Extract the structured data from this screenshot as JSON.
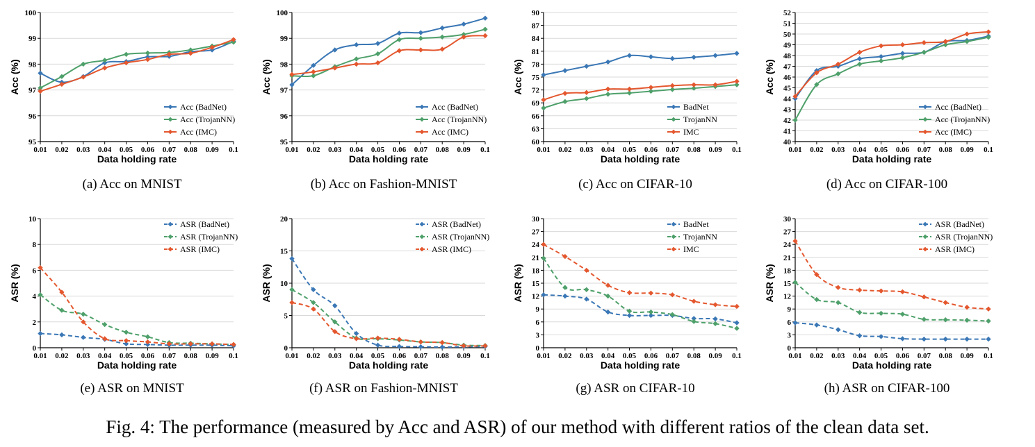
{
  "figure_caption": "Fig. 4: The performance (measured by Acc and ASR) of our method with different ratios of the clean data set.",
  "colors": {
    "badnet": "#3a77b5",
    "trojannn": "#4ea06a",
    "imc": "#e4572e"
  },
  "chart_data": [
    {
      "id": "a",
      "type": "line",
      "caption": "(a) Acc on MNIST",
      "xlabel": "Data holding rate",
      "ylabel": "Acc (%)",
      "x": [
        0.01,
        0.02,
        0.03,
        0.04,
        0.05,
        0.06,
        0.07,
        0.08,
        0.09,
        0.1
      ],
      "x_ticks": [
        "0.01",
        "0.02",
        "0.03",
        "0.04",
        "0.05",
        "0.06",
        "0.07",
        "0.08",
        "0.09",
        "0.1"
      ],
      "ylim": [
        95,
        100
      ],
      "y_ticks": [
        95,
        96,
        97,
        98,
        99,
        100
      ],
      "dashed": false,
      "legend_labels": [
        "Acc (BadNet)",
        "Acc (TrojanNN)",
        "Acc (IMC)"
      ],
      "series": [
        {
          "name": "BadNet",
          "values": [
            97.65,
            97.3,
            97.52,
            98.05,
            98.1,
            98.28,
            98.3,
            98.48,
            98.55,
            98.88
          ]
        },
        {
          "name": "TrojanNN",
          "values": [
            97.08,
            97.52,
            98.0,
            98.15,
            98.38,
            98.43,
            98.45,
            98.55,
            98.7,
            98.85
          ]
        },
        {
          "name": "IMC",
          "values": [
            96.95,
            97.22,
            97.5,
            97.85,
            98.05,
            98.18,
            98.38,
            98.42,
            98.65,
            98.95
          ]
        }
      ]
    },
    {
      "id": "b",
      "type": "line",
      "caption": "(b) Acc on Fashion-MNIST",
      "xlabel": "Data holding rate",
      "ylabel": "Acc (%)",
      "x": [
        0.01,
        0.02,
        0.03,
        0.04,
        0.05,
        0.06,
        0.07,
        0.08,
        0.09,
        0.1
      ],
      "x_ticks": [
        "0.01",
        "0.02",
        "0.03",
        "0.04",
        "0.05",
        "0.06",
        "0.07",
        "0.08",
        "0.09",
        "0.1"
      ],
      "ylim": [
        95,
        100
      ],
      "y_ticks": [
        95,
        96,
        97,
        98,
        99,
        100
      ],
      "dashed": false,
      "legend_labels": [
        "Acc (BadNet)",
        "Acc (TrojanNN)",
        "Acc (IMC)"
      ],
      "series": [
        {
          "name": "BadNet",
          "values": [
            97.2,
            97.95,
            98.55,
            98.75,
            98.8,
            99.2,
            99.22,
            99.4,
            99.55,
            99.78
          ]
        },
        {
          "name": "TrojanNN",
          "values": [
            97.55,
            97.55,
            97.9,
            98.2,
            98.4,
            98.95,
            99.0,
            99.05,
            99.15,
            99.35
          ]
        },
        {
          "name": "IMC",
          "values": [
            97.6,
            97.7,
            97.85,
            98.0,
            98.05,
            98.52,
            98.55,
            98.58,
            99.05,
            99.1
          ]
        }
      ]
    },
    {
      "id": "c",
      "type": "line",
      "caption": "(c) Acc on CIFAR-10",
      "xlabel": "Data holding rate",
      "ylabel": "Acc (%)",
      "x": [
        0.01,
        0.02,
        0.03,
        0.04,
        0.05,
        0.06,
        0.07,
        0.08,
        0.09,
        0.1
      ],
      "x_ticks": [
        "0.01",
        "0.02",
        "0.03",
        "0.04",
        "0.05",
        "0.06",
        "0.07",
        "0.08",
        "0.09",
        "0.1"
      ],
      "ylim": [
        60,
        90
      ],
      "y_ticks": [
        60,
        63,
        66,
        69,
        72,
        75,
        78,
        81,
        84,
        87,
        90
      ],
      "dashed": false,
      "legend_labels": [
        "BadNet",
        "TrojanNN",
        "IMC"
      ],
      "series": [
        {
          "name": "BadNet",
          "values": [
            75.5,
            76.5,
            77.5,
            78.5,
            80.0,
            79.7,
            79.3,
            79.6,
            80.0,
            80.5
          ]
        },
        {
          "name": "TrojanNN",
          "values": [
            67.8,
            69.3,
            70.0,
            71.0,
            71.3,
            71.7,
            72.1,
            72.4,
            72.8,
            73.2
          ]
        },
        {
          "name": "IMC",
          "values": [
            69.7,
            71.2,
            71.4,
            72.2,
            72.2,
            72.6,
            73.0,
            73.2,
            73.2,
            74.0
          ]
        }
      ]
    },
    {
      "id": "d",
      "type": "line",
      "caption": "(d) Acc on CIFAR-100",
      "xlabel": "Data holding rate",
      "ylabel": "Acc (%)",
      "x": [
        0.01,
        0.02,
        0.03,
        0.04,
        0.05,
        0.06,
        0.07,
        0.08,
        0.09,
        0.1
      ],
      "x_ticks": [
        "0.01",
        "0.02",
        "0.03",
        "0.04",
        "0.05",
        "0.06",
        "0.07",
        "0.08",
        "0.09",
        "0.1"
      ],
      "ylim": [
        40,
        52
      ],
      "y_ticks": [
        40,
        41,
        42,
        43,
        44,
        45,
        46,
        47,
        48,
        49,
        50,
        51,
        52
      ],
      "dashed": false,
      "legend_labels": [
        "Acc (BadNet)",
        "Acc (TrojanNN)",
        "Acc (IMC)"
      ],
      "series": [
        {
          "name": "BadNet",
          "values": [
            44.0,
            46.6,
            47.0,
            47.7,
            47.9,
            48.2,
            48.3,
            49.3,
            49.4,
            49.8
          ]
        },
        {
          "name": "TrojanNN",
          "values": [
            42.0,
            45.3,
            46.3,
            47.2,
            47.5,
            47.8,
            48.3,
            49.0,
            49.3,
            49.7
          ]
        },
        {
          "name": "IMC",
          "values": [
            44.2,
            46.4,
            47.2,
            48.3,
            48.9,
            49.0,
            49.2,
            49.3,
            50.0,
            50.2
          ]
        }
      ]
    },
    {
      "id": "e",
      "type": "line",
      "caption": "(e) ASR on MNIST",
      "xlabel": "Data holding rate",
      "ylabel": "ASR (%)",
      "x": [
        0.01,
        0.02,
        0.03,
        0.04,
        0.05,
        0.06,
        0.07,
        0.08,
        0.09,
        0.1
      ],
      "x_ticks": [
        "0.01",
        "0.02",
        "0.03",
        "0.04",
        "0.05",
        "0.06",
        "0.07",
        "0.08",
        "0.09",
        "0.1"
      ],
      "ylim": [
        0,
        10
      ],
      "y_ticks": [
        0,
        2,
        4,
        6,
        8,
        10
      ],
      "dashed": true,
      "legend_labels": [
        "ASR (BadNet)",
        "ASR (TrojanNN)",
        "ASR (IMC)"
      ],
      "series": [
        {
          "name": "BadNet",
          "values": [
            1.1,
            1.0,
            0.8,
            0.65,
            0.3,
            0.25,
            0.2,
            0.2,
            0.2,
            0.15
          ]
        },
        {
          "name": "TrojanNN",
          "values": [
            4.1,
            2.9,
            2.6,
            1.8,
            1.2,
            0.85,
            0.4,
            0.35,
            0.3,
            0.25
          ]
        },
        {
          "name": "IMC",
          "values": [
            6.2,
            4.3,
            2.0,
            0.7,
            0.55,
            0.45,
            0.3,
            0.3,
            0.3,
            0.25
          ]
        }
      ]
    },
    {
      "id": "f",
      "type": "line",
      "caption": "(f) ASR on Fashion-MNIST",
      "xlabel": "Data holding rate",
      "ylabel": "ASR (%)",
      "x": [
        0.01,
        0.02,
        0.03,
        0.04,
        0.05,
        0.06,
        0.07,
        0.08,
        0.09,
        0.1
      ],
      "x_ticks": [
        "0.01",
        "0.02",
        "0.03",
        "0.04",
        "0.05",
        "0.06",
        "0.07",
        "0.08",
        "0.09",
        "0.1"
      ],
      "ylim": [
        0,
        20
      ],
      "y_ticks": [
        0,
        5,
        10,
        15,
        20
      ],
      "dashed": true,
      "legend_labels": [
        "ASR (BadNet)",
        "ASR (TrojanNN)",
        "ASR (IMC)"
      ],
      "series": [
        {
          "name": "BadNet",
          "values": [
            13.8,
            9.0,
            6.5,
            2.2,
            0.4,
            0.2,
            0.15,
            0.1,
            0.15,
            0.2
          ]
        },
        {
          "name": "TrojanNN",
          "values": [
            9.0,
            7.0,
            4.0,
            1.5,
            1.4,
            1.2,
            0.9,
            0.8,
            0.4,
            0.35
          ]
        },
        {
          "name": "IMC",
          "values": [
            7.0,
            6.0,
            2.5,
            1.4,
            1.5,
            1.3,
            0.9,
            0.8,
            0.3,
            0.3
          ]
        }
      ]
    },
    {
      "id": "g",
      "type": "line",
      "caption": "(g) ASR on CIFAR-10",
      "xlabel": "Data holding rate",
      "ylabel": "ASR (%)",
      "x": [
        0.01,
        0.02,
        0.03,
        0.04,
        0.05,
        0.06,
        0.07,
        0.08,
        0.09,
        0.1
      ],
      "x_ticks": [
        "0.01",
        "0.02",
        "0.03",
        "0.04",
        "0.05",
        "0.06",
        "0.07",
        "0.08",
        "0.09",
        "0.1"
      ],
      "ylim": [
        0,
        30
      ],
      "y_ticks": [
        0,
        3,
        6,
        9,
        12,
        15,
        18,
        21,
        24,
        27,
        30
      ],
      "dashed": true,
      "legend_labels": [
        "BadNet",
        "TrojanNN",
        "IMC"
      ],
      "series": [
        {
          "name": "BadNet",
          "values": [
            12.3,
            12.0,
            11.3,
            8.3,
            7.5,
            7.5,
            7.5,
            6.8,
            6.7,
            5.8
          ]
        },
        {
          "name": "TrojanNN",
          "values": [
            20.8,
            14.0,
            13.5,
            12.0,
            8.5,
            8.3,
            7.7,
            6.1,
            5.6,
            4.5
          ]
        },
        {
          "name": "IMC",
          "values": [
            24.0,
            21.2,
            18.0,
            14.5,
            12.8,
            12.7,
            12.3,
            10.8,
            10.0,
            9.6
          ]
        }
      ]
    },
    {
      "id": "h",
      "type": "line",
      "caption": "(h) ASR on CIFAR-100",
      "xlabel": "Data holding rate",
      "ylabel": "ASR (%)",
      "x": [
        0.01,
        0.02,
        0.03,
        0.04,
        0.05,
        0.06,
        0.07,
        0.08,
        0.09,
        0.1
      ],
      "x_ticks": [
        "0.01",
        "0.02",
        "0.03",
        "0.04",
        "0.05",
        "0.06",
        "0.07",
        "0.08",
        "0.09",
        "0.1"
      ],
      "ylim": [
        0,
        30
      ],
      "y_ticks": [
        0,
        3,
        6,
        9,
        12,
        15,
        18,
        21,
        24,
        27,
        30
      ],
      "dashed": true,
      "legend_labels": [
        "ASR (BadNet)",
        "ASR (TrojanNN)",
        "ASR (IMC)"
      ],
      "series": [
        {
          "name": "BadNet",
          "values": [
            5.8,
            5.3,
            4.2,
            2.8,
            2.6,
            2.1,
            2.0,
            2.0,
            2.0,
            2.0
          ]
        },
        {
          "name": "TrojanNN",
          "values": [
            15.2,
            11.2,
            10.5,
            8.2,
            8.0,
            7.8,
            6.6,
            6.5,
            6.4,
            6.2
          ]
        },
        {
          "name": "IMC",
          "values": [
            24.8,
            17.0,
            14.0,
            13.4,
            13.2,
            13.0,
            11.8,
            10.5,
            9.4,
            9.0
          ]
        }
      ]
    }
  ]
}
